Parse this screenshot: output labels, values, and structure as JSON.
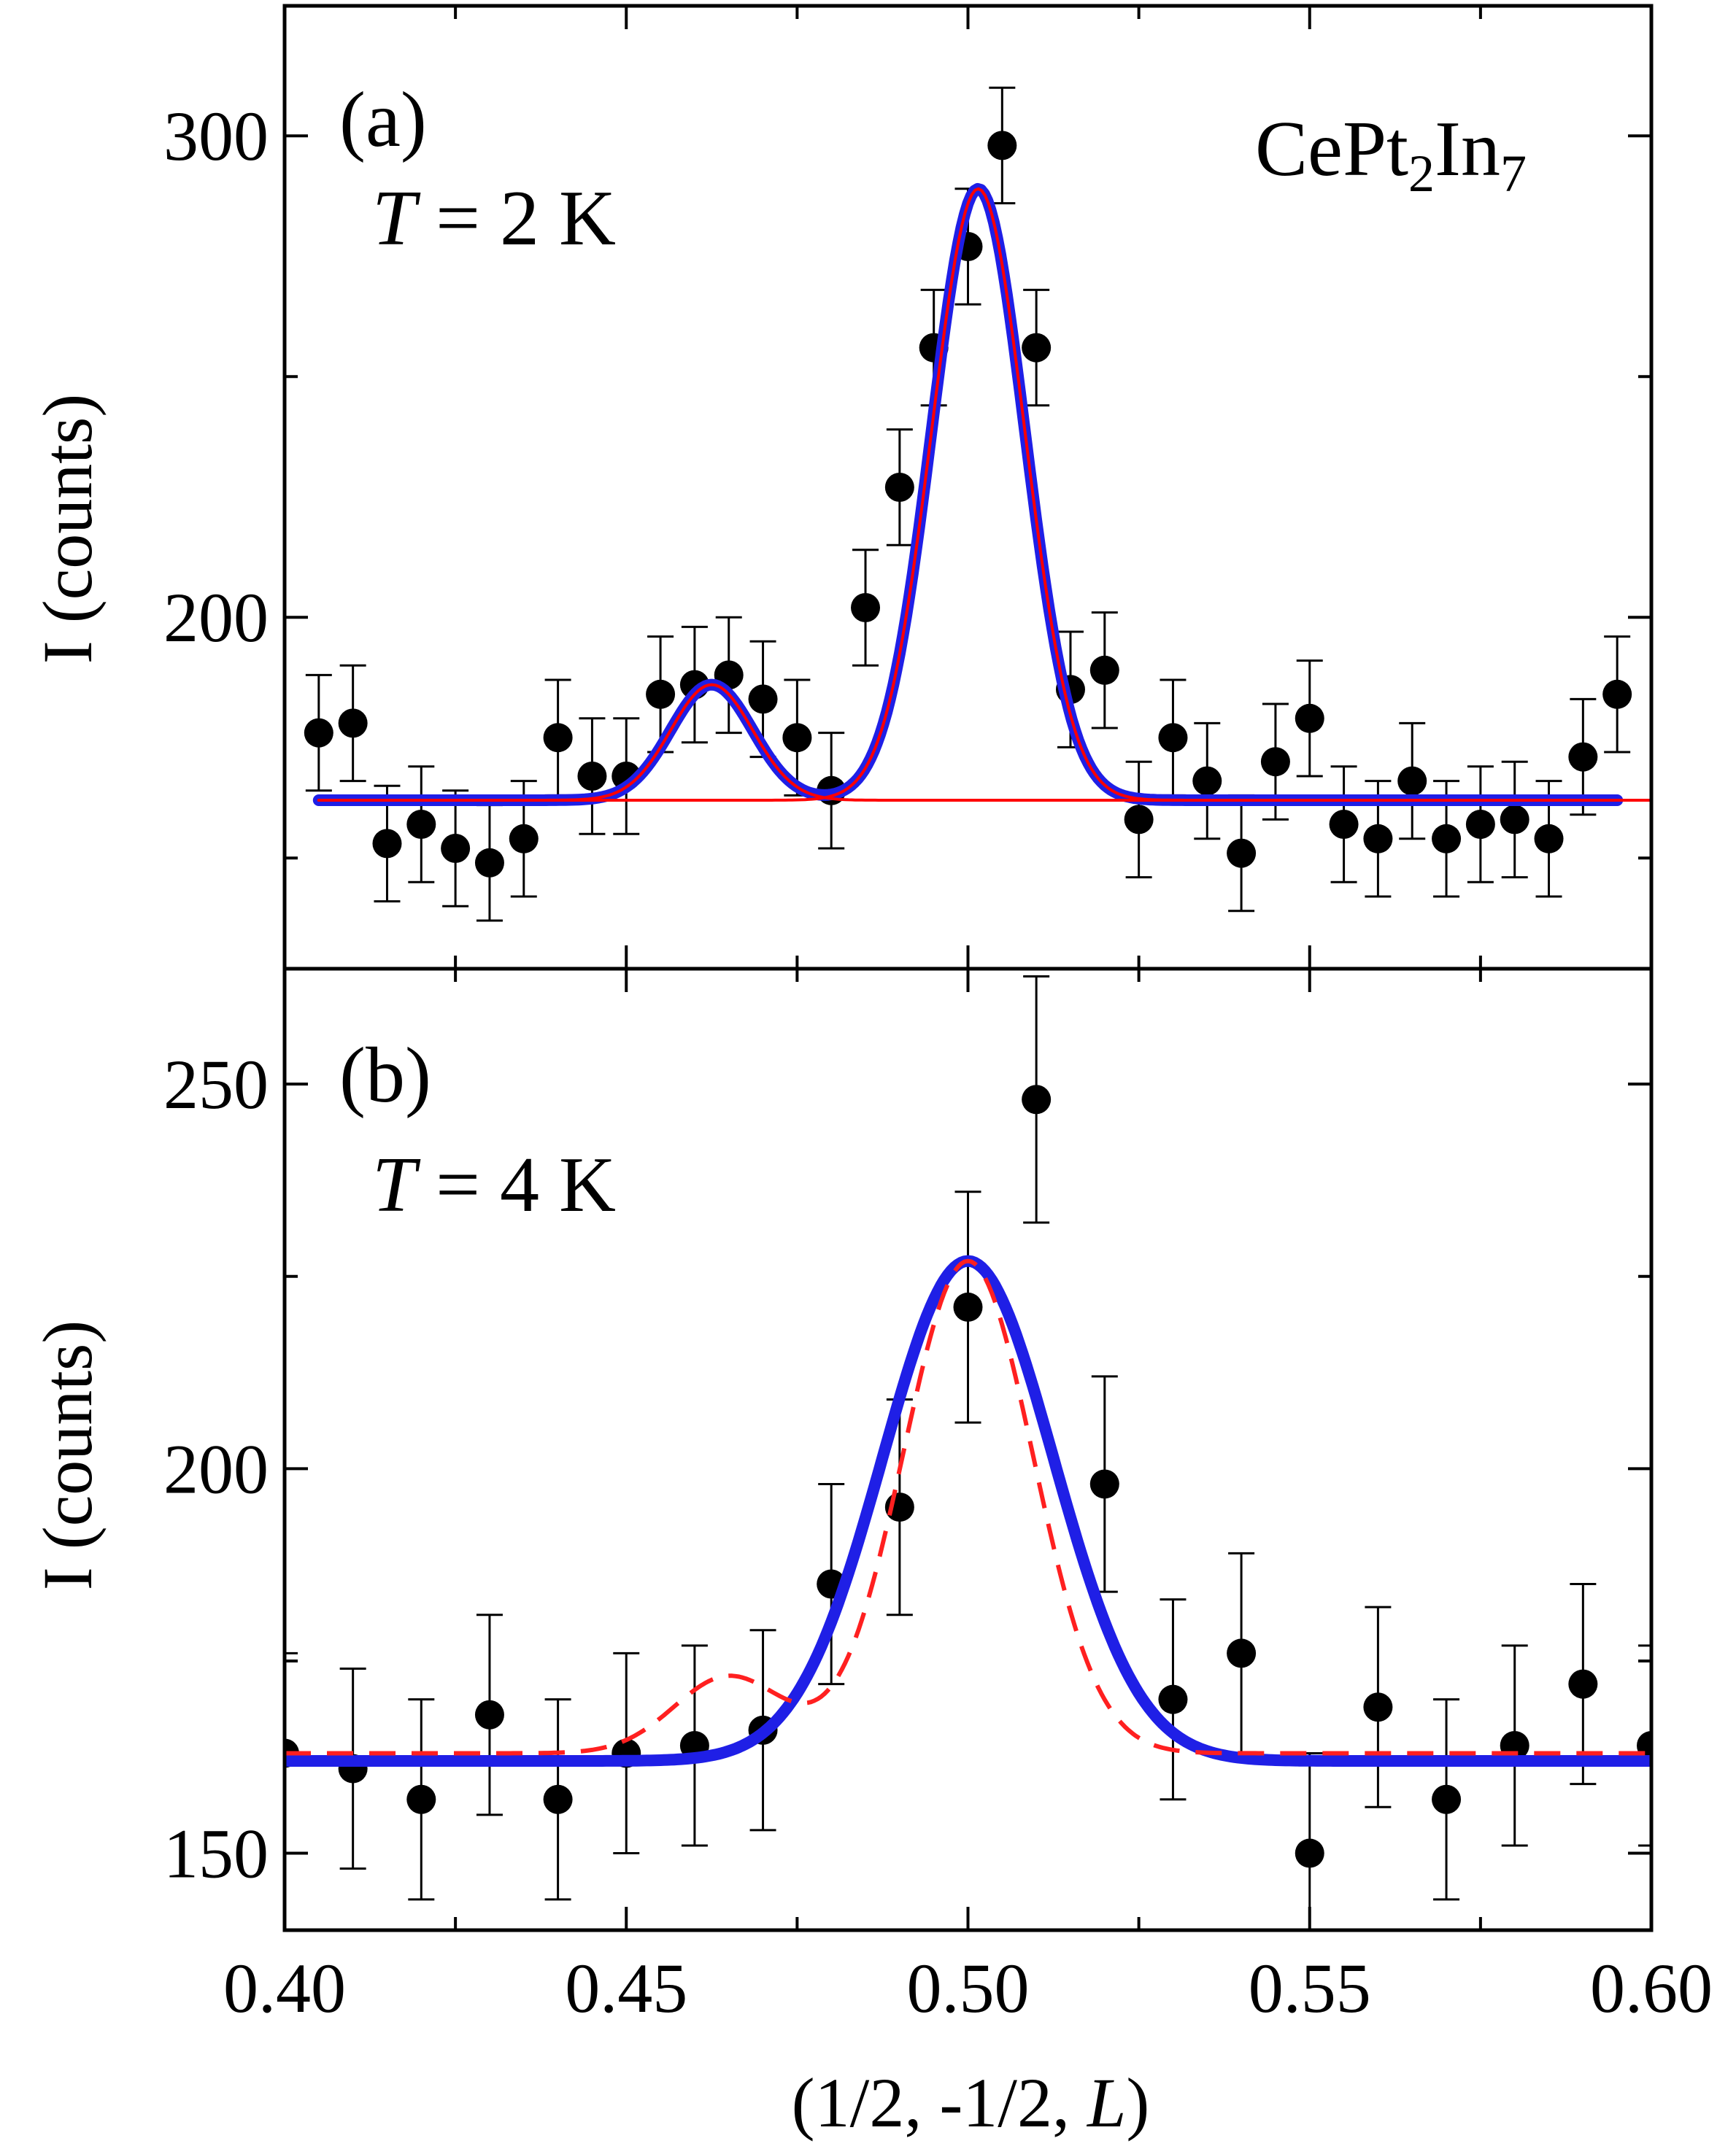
{
  "chart_data": [
    {
      "panel_label": "(a)",
      "annotation": "T = 2 K",
      "annotation_var": "T",
      "annotation_rest": " = 2 K",
      "compound": {
        "base": "CePt",
        "sub1": "2",
        "mid": "In",
        "sub2": "7"
      },
      "type": "scatter",
      "xlabel": "",
      "ylabel": "I (counts)",
      "xlim": [
        0.4,
        0.6
      ],
      "ylim": [
        127,
        327
      ],
      "yticks": [
        200,
        300
      ],
      "ytick_labels": [
        "200",
        "300"
      ],
      "grid": false,
      "legend": "none",
      "series": [
        {
          "kind": "points-with-error-bars",
          "color": "#000000",
          "x": [
            0.405,
            0.41,
            0.415,
            0.42,
            0.425,
            0.43,
            0.435,
            0.44,
            0.445,
            0.45,
            0.455,
            0.46,
            0.465,
            0.47,
            0.475,
            0.48,
            0.485,
            0.49,
            0.495,
            0.5,
            0.505,
            0.51,
            0.515,
            0.52,
            0.525,
            0.53,
            0.535,
            0.54,
            0.545,
            0.55,
            0.555,
            0.56,
            0.565,
            0.57,
            0.575,
            0.58,
            0.585,
            0.59,
            0.595
          ],
          "y": [
            176,
            178,
            153,
            157,
            152,
            149,
            154,
            175,
            167,
            167,
            184,
            186,
            188,
            183,
            175,
            164,
            202,
            227,
            256,
            277,
            298,
            256,
            185,
            189,
            158,
            175,
            166,
            151,
            170,
            179,
            157,
            154,
            166,
            154,
            157,
            158,
            154,
            171,
            184
          ],
          "err": [
            12,
            12,
            12,
            12,
            12,
            12,
            12,
            12,
            12,
            12,
            12,
            12,
            12,
            12,
            12,
            12,
            12,
            12,
            12,
            12,
            12,
            12,
            12,
            12,
            12,
            12,
            12,
            12,
            12,
            12,
            12,
            12,
            12,
            12,
            12,
            12,
            12,
            12,
            12
          ]
        },
        {
          "kind": "gaussian-sum-fit",
          "color": "#1f1fe6",
          "x_range": [
            0.405,
            0.595
          ],
          "baseline": 162,
          "peaks": [
            {
              "center": 0.4625,
              "amplitude": 24,
              "sigma": 0.006
            },
            {
              "center": 0.5015,
              "amplitude": 127,
              "sigma": 0.0068
            }
          ]
        },
        {
          "kind": "gaussian-component",
          "color": "#ff0000",
          "x_range": [
            0.405,
            0.6
          ],
          "baseline": 162,
          "peaks": [
            {
              "center": 0.4625,
              "amplitude": 24,
              "sigma": 0.006
            }
          ]
        },
        {
          "kind": "gaussian-component",
          "color": "#ff0000",
          "x_range": [
            0.405,
            0.6
          ],
          "baseline": 162,
          "peaks": [
            {
              "center": 0.5015,
              "amplitude": 127,
              "sigma": 0.0068
            }
          ]
        }
      ]
    },
    {
      "panel_label": "(b)",
      "annotation": "T = 4 K",
      "annotation_var": "T",
      "annotation_rest": " = 4 K",
      "type": "scatter",
      "xlabel": "(1/2, -1/2, L)",
      "xlabel_prefix": "(1/2, -1/2, ",
      "xlabel_var": "L",
      "xlabel_suffix": ")",
      "ylabel": "I (counts)",
      "xlim": [
        0.4,
        0.6
      ],
      "ylim": [
        140,
        265
      ],
      "yticks": [
        150,
        200,
        250
      ],
      "ytick_labels": [
        "150",
        "200",
        "250"
      ],
      "xticks": [
        0.4,
        0.45,
        0.5,
        0.55,
        0.6
      ],
      "xtick_labels": [
        "0.40",
        "0.45",
        "0.50",
        "0.55",
        "0.60"
      ],
      "grid": false,
      "legend": "none",
      "series": [
        {
          "kind": "points-with-error-bars",
          "color": "#000000",
          "x": [
            0.4,
            0.41,
            0.42,
            0.43,
            0.44,
            0.45,
            0.46,
            0.47,
            0.48,
            0.49,
            0.5,
            0.51,
            0.52,
            0.53,
            0.54,
            0.55,
            0.56,
            0.57,
            0.58,
            0.59,
            0.6
          ],
          "y": [
            163,
            161,
            157,
            168,
            157,
            163,
            164,
            166,
            185,
            195,
            221,
            248,
            198,
            170,
            176,
            150,
            169,
            157,
            164,
            172,
            164
          ],
          "err": [
            13,
            13,
            13,
            13,
            13,
            13,
            13,
            13,
            13,
            14,
            15,
            16,
            14,
            13,
            13,
            13,
            13,
            13,
            13,
            13,
            13
          ]
        },
        {
          "kind": "gaussian-fit",
          "color": "#1f1fe6",
          "x_range": [
            0.4,
            0.6
          ],
          "baseline": 162,
          "peaks": [
            {
              "center": 0.5,
              "amplitude": 65,
              "sigma": 0.0125
            }
          ]
        },
        {
          "kind": "gaussian-fit-dashed",
          "color": "#ff2020",
          "x_range": [
            0.4,
            0.6
          ],
          "baseline": 163,
          "peaks": [
            {
              "center": 0.5,
              "amplitude": 64,
              "sigma": 0.0095
            },
            {
              "center": 0.465,
              "amplitude": 10,
              "sigma": 0.008
            }
          ]
        }
      ]
    }
  ]
}
